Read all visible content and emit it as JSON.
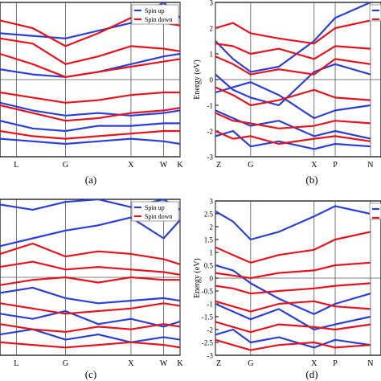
{
  "figure": {
    "captions": [
      "(a)",
      "(b)",
      "(c)",
      "(d)"
    ]
  },
  "colors": {
    "spin_up": "#2b3fd6",
    "spin_down": "#e3141e",
    "axis": "#000000",
    "grid": "#555555"
  },
  "chart_data": [
    {
      "id": "a",
      "type": "line",
      "title": "",
      "xlabel": "",
      "ylabel": "",
      "kpoints": [
        "L",
        "G",
        "X",
        "W",
        "K"
      ],
      "x_ticks": [
        0.25,
        1.0,
        2.0,
        2.5,
        2.75
      ],
      "ylim": [
        -3,
        3
      ],
      "zero_line": 0,
      "legend": {
        "placement": "top-right",
        "entries": [
          "Spin up",
          "Spin down"
        ]
      },
      "series": [
        {
          "name": "Spin up",
          "spin": "up",
          "x": [
            0,
            0.5,
            1,
            1.5,
            2,
            2.5,
            2.75
          ],
          "y": [
            0.4,
            0.2,
            0.1,
            0.3,
            0.6,
            0.9,
            1.0
          ]
        },
        {
          "name": "Spin up",
          "spin": "up",
          "x": [
            0,
            0.5,
            1,
            1.5,
            2,
            2.5,
            2.75
          ],
          "y": [
            -0.9,
            -1.2,
            -1.4,
            -1.3,
            -1.4,
            -1.3,
            -1.2
          ]
        },
        {
          "name": "Spin up",
          "spin": "up",
          "x": [
            0,
            0.5,
            1,
            1.5,
            2,
            2.5,
            2.75
          ],
          "y": [
            -1.6,
            -1.9,
            -2.0,
            -1.8,
            -1.8,
            -1.7,
            -1.7
          ]
        },
        {
          "name": "Spin up",
          "spin": "up",
          "x": [
            0,
            0.5,
            1,
            1.5,
            2,
            2.5,
            2.75
          ],
          "y": [
            -2.3,
            -2.4,
            -2.5,
            -2.4,
            -2.3,
            -2.4,
            -2.5
          ]
        },
        {
          "name": "Spin up",
          "spin": "up",
          "x": [
            0,
            0.5,
            1,
            1.5,
            2,
            2.5,
            2.75
          ],
          "y": [
            1.8,
            1.7,
            1.6,
            1.9,
            2.2,
            3.0,
            2.4
          ]
        },
        {
          "name": "Spin down",
          "spin": "down",
          "x": [
            0,
            0.5,
            1,
            1.5,
            2,
            2.5,
            2.75
          ],
          "y": [
            2.3,
            2.0,
            1.3,
            1.8,
            2.4,
            2.2,
            2.1
          ]
        },
        {
          "name": "Spin down",
          "spin": "down",
          "x": [
            0,
            0.5,
            1,
            1.5,
            2,
            2.5,
            2.75
          ],
          "y": [
            1.6,
            1.4,
            0.6,
            0.9,
            1.3,
            1.2,
            1.1
          ]
        },
        {
          "name": "Spin down",
          "spin": "down",
          "x": [
            0,
            0.5,
            1,
            1.5,
            2,
            2.5,
            2.75
          ],
          "y": [
            1.0,
            0.6,
            0.1,
            0.3,
            0.5,
            0.7,
            0.8
          ]
        },
        {
          "name": "Spin down",
          "spin": "down",
          "x": [
            0,
            0.5,
            1,
            1.5,
            2,
            2.5,
            2.75
          ],
          "y": [
            -0.5,
            -0.7,
            -0.9,
            -0.8,
            -0.6,
            -0.5,
            -0.5
          ]
        },
        {
          "name": "Spin down",
          "spin": "down",
          "x": [
            0,
            0.5,
            1,
            1.5,
            2,
            2.5,
            2.75
          ],
          "y": [
            -1.0,
            -1.3,
            -1.6,
            -1.5,
            -1.3,
            -1.2,
            -1.1
          ]
        },
        {
          "name": "Spin down",
          "spin": "down",
          "x": [
            0,
            0.5,
            1,
            1.5,
            2,
            2.5,
            2.75
          ],
          "y": [
            -2.0,
            -2.2,
            -2.3,
            -2.2,
            -2.1,
            -2.0,
            -2.0
          ]
        }
      ]
    },
    {
      "id": "b",
      "type": "line",
      "title": "",
      "xlabel": "",
      "ylabel": "Energy (eV)",
      "kpoints": [
        "Z",
        "G",
        "X",
        "P",
        "N"
      ],
      "x_ticks": [
        0.0,
        0.5,
        1.4,
        1.7,
        2.2
      ],
      "y_ticks": [
        -3,
        -2,
        -1,
        0,
        1,
        2,
        3
      ],
      "ylim": [
        -3,
        3
      ],
      "zero_line": 0,
      "legend": {
        "placement": "top-right",
        "entries": []
      },
      "series": [
        {
          "spin": "up",
          "x": [
            0,
            0.25,
            0.5,
            0.9,
            1.4,
            1.7,
            2.2
          ],
          "y": [
            1.5,
            0.8,
            0.3,
            0.5,
            1.5,
            2.4,
            3.0
          ]
        },
        {
          "spin": "up",
          "x": [
            0,
            0.25,
            0.5,
            0.9,
            1.4,
            1.7,
            2.2
          ],
          "y": [
            -0.5,
            -0.3,
            -0.1,
            -0.6,
            -1.5,
            -1.2,
            -1.0
          ]
        },
        {
          "spin": "up",
          "x": [
            0,
            0.25,
            0.5,
            0.9,
            1.4,
            1.7,
            2.2
          ],
          "y": [
            -1.2,
            -1.5,
            -1.8,
            -1.6,
            -2.2,
            -2.0,
            -2.3
          ]
        },
        {
          "spin": "up",
          "x": [
            0,
            0.25,
            0.5,
            0.9,
            1.4,
            1.7,
            2.2
          ],
          "y": [
            -2.2,
            -2.0,
            -2.6,
            -2.4,
            -2.7,
            -2.5,
            -2.6
          ]
        },
        {
          "spin": "up",
          "x": [
            0,
            0.25,
            0.5,
            0.9,
            1.4,
            1.7,
            2.2
          ],
          "y": [
            0.2,
            -0.4,
            -0.7,
            -1.0,
            0.3,
            0.6,
            0.2
          ]
        },
        {
          "spin": "down",
          "x": [
            0,
            0.25,
            0.5,
            0.9,
            1.4,
            1.7,
            2.2
          ],
          "y": [
            2.0,
            2.2,
            1.8,
            1.6,
            1.4,
            2.0,
            2.3
          ]
        },
        {
          "spin": "down",
          "x": [
            0,
            0.25,
            0.5,
            0.9,
            1.4,
            1.7,
            2.2
          ],
          "y": [
            1.4,
            1.3,
            1.0,
            1.2,
            0.8,
            1.3,
            1.2
          ]
        },
        {
          "spin": "down",
          "x": [
            0,
            0.25,
            0.5,
            0.9,
            1.4,
            1.7,
            2.2
          ],
          "y": [
            0.9,
            0.6,
            0.2,
            0.4,
            0.2,
            0.8,
            0.6
          ]
        },
        {
          "spin": "down",
          "x": [
            0,
            0.25,
            0.5,
            0.9,
            1.4,
            1.7,
            2.2
          ],
          "y": [
            -0.3,
            -0.6,
            -1.0,
            -0.8,
            -0.4,
            -0.7,
            -0.8
          ]
        },
        {
          "spin": "down",
          "x": [
            0,
            0.25,
            0.5,
            0.9,
            1.4,
            1.7,
            2.2
          ],
          "y": [
            -1.3,
            -1.6,
            -1.7,
            -1.9,
            -1.8,
            -1.6,
            -1.7
          ]
        },
        {
          "spin": "down",
          "x": [
            0,
            0.25,
            0.5,
            0.9,
            1.4,
            1.7,
            2.2
          ],
          "y": [
            -2.0,
            -2.3,
            -2.2,
            -2.5,
            -2.3,
            -2.2,
            -2.4
          ]
        }
      ]
    },
    {
      "id": "c",
      "type": "line",
      "title": "",
      "xlabel": "",
      "ylabel": "",
      "kpoints": [
        "L",
        "G",
        "X",
        "W",
        "K"
      ],
      "x_ticks": [
        0.25,
        1.0,
        2.0,
        2.5,
        2.75
      ],
      "ylim": [
        -3,
        3
      ],
      "zero_line": 0,
      "legend": {
        "placement": "top-right",
        "entries": [
          "Spin up",
          "Spin down"
        ]
      },
      "series": [
        {
          "name": "Spin up",
          "spin": "up",
          "x": [
            0,
            0.5,
            1,
            1.5,
            2,
            2.5,
            2.75
          ],
          "y": [
            1.2,
            1.5,
            1.8,
            2.0,
            2.3,
            1.5,
            2.2
          ]
        },
        {
          "name": "Spin up",
          "spin": "up",
          "x": [
            0,
            0.5,
            1,
            1.5,
            2,
            2.5,
            2.75
          ],
          "y": [
            -0.6,
            -0.4,
            -0.8,
            -1.0,
            -0.9,
            -0.8,
            -0.9
          ]
        },
        {
          "name": "Spin up",
          "spin": "up",
          "x": [
            0,
            0.5,
            1,
            1.5,
            2,
            2.5,
            2.75
          ],
          "y": [
            -1.4,
            -1.6,
            -1.3,
            -1.8,
            -1.6,
            -1.9,
            -1.7
          ]
        },
        {
          "name": "Spin up",
          "spin": "up",
          "x": [
            0,
            0.5,
            1,
            1.5,
            2,
            2.5,
            2.75
          ],
          "y": [
            -2.2,
            -2.0,
            -2.4,
            -2.2,
            -2.5,
            -2.3,
            -2.4
          ]
        },
        {
          "name": "Spin up",
          "spin": "up",
          "x": [
            0,
            0.5,
            1,
            1.5,
            2,
            2.5,
            2.75
          ],
          "y": [
            2.8,
            2.6,
            2.9,
            3.0,
            2.7,
            3.0,
            2.6
          ]
        },
        {
          "name": "Spin down",
          "spin": "down",
          "x": [
            0,
            0.5,
            1,
            1.5,
            2,
            2.5,
            2.75
          ],
          "y": [
            0.9,
            1.3,
            0.8,
            1.0,
            0.9,
            0.7,
            0.5
          ]
        },
        {
          "name": "Spin down",
          "spin": "down",
          "x": [
            0,
            0.5,
            1,
            1.5,
            2,
            2.5,
            2.75
          ],
          "y": [
            0.4,
            0.6,
            0.3,
            0.4,
            0.3,
            0.2,
            0.1
          ]
        },
        {
          "name": "Spin down",
          "spin": "down",
          "x": [
            0,
            0.5,
            1,
            1.5,
            2,
            2.5,
            2.75
          ],
          "y": [
            -0.3,
            -0.1,
            0.0,
            -0.2,
            0.0,
            -0.1,
            -0.1
          ]
        },
        {
          "name": "Spin down",
          "spin": "down",
          "x": [
            0,
            0.5,
            1,
            1.5,
            2,
            2.5,
            2.75
          ],
          "y": [
            -1.0,
            -1.2,
            -1.4,
            -1.3,
            -1.2,
            -1.0,
            -1.1
          ]
        },
        {
          "name": "Spin down",
          "spin": "down",
          "x": [
            0,
            0.5,
            1,
            1.5,
            2,
            2.5,
            2.75
          ],
          "y": [
            -1.8,
            -2.0,
            -2.1,
            -1.9,
            -2.0,
            -1.8,
            -1.9
          ]
        },
        {
          "name": "Spin down",
          "spin": "down",
          "x": [
            0,
            0.5,
            1,
            1.5,
            2,
            2.5,
            2.75
          ],
          "y": [
            -2.5,
            -2.6,
            -2.7,
            -2.6,
            -2.5,
            -2.6,
            -2.7
          ]
        }
      ]
    },
    {
      "id": "d",
      "type": "line",
      "title": "",
      "xlabel": "",
      "ylabel": "Energy (eV)",
      "kpoints": [
        "Z",
        "G",
        "X",
        "P",
        "N"
      ],
      "x_ticks": [
        0.0,
        0.5,
        1.4,
        1.7,
        2.2
      ],
      "y_ticks": [
        -3,
        -2.5,
        -2,
        -1.5,
        -1,
        -0.5,
        0,
        0.5,
        1,
        1.5,
        2,
        2.5,
        3
      ],
      "ylim": [
        -3,
        3
      ],
      "zero_line": 0,
      "legend": {
        "placement": "top-right",
        "entries": []
      },
      "series": [
        {
          "spin": "up",
          "x": [
            0,
            0.25,
            0.5,
            0.9,
            1.4,
            1.7,
            2.2
          ],
          "y": [
            2.6,
            2.2,
            1.5,
            1.8,
            2.4,
            2.8,
            2.5
          ]
        },
        {
          "spin": "up",
          "x": [
            0,
            0.25,
            0.5,
            0.9,
            1.4,
            1.7,
            2.2
          ],
          "y": [
            0.5,
            0.3,
            -0.2,
            -0.8,
            -1.4,
            -1.0,
            -0.6
          ]
        },
        {
          "spin": "up",
          "x": [
            0,
            0.25,
            0.5,
            0.9,
            1.4,
            1.7,
            2.2
          ],
          "y": [
            -1.0,
            -1.3,
            -1.6,
            -1.2,
            -2.0,
            -1.8,
            -1.5
          ]
        },
        {
          "spin": "up",
          "x": [
            0,
            0.25,
            0.5,
            0.9,
            1.4,
            1.7,
            2.2
          ],
          "y": [
            -2.2,
            -2.0,
            -2.5,
            -2.3,
            -2.7,
            -2.4,
            -2.6
          ]
        },
        {
          "spin": "down",
          "x": [
            0,
            0.25,
            0.5,
            0.9,
            1.4,
            1.7,
            2.2
          ],
          "y": [
            1.2,
            0.9,
            0.6,
            0.9,
            1.1,
            1.5,
            1.8
          ]
        },
        {
          "spin": "down",
          "x": [
            0,
            0.25,
            0.5,
            0.9,
            1.4,
            1.7,
            2.2
          ],
          "y": [
            0.2,
            0.1,
            0.0,
            0.2,
            0.3,
            0.5,
            0.6
          ]
        },
        {
          "spin": "down",
          "x": [
            0,
            0.25,
            0.5,
            0.9,
            1.4,
            1.7,
            2.2
          ],
          "y": [
            -0.3,
            -0.4,
            -0.6,
            -0.5,
            -0.4,
            -0.3,
            -0.2
          ]
        },
        {
          "spin": "down",
          "x": [
            0,
            0.25,
            0.5,
            0.9,
            1.4,
            1.7,
            2.2
          ],
          "y": [
            -0.9,
            -1.1,
            -1.3,
            -1.0,
            -0.9,
            -1.1,
            -1.2
          ]
        },
        {
          "spin": "down",
          "x": [
            0,
            0.25,
            0.5,
            0.9,
            1.4,
            1.7,
            2.2
          ],
          "y": [
            -1.7,
            -1.9,
            -2.1,
            -1.8,
            -1.9,
            -2.0,
            -1.8
          ]
        },
        {
          "spin": "down",
          "x": [
            0,
            0.25,
            0.5,
            0.9,
            1.4,
            1.7,
            2.2
          ],
          "y": [
            -2.4,
            -2.6,
            -2.8,
            -2.6,
            -2.5,
            -2.7,
            -2.6
          ]
        }
      ]
    }
  ]
}
